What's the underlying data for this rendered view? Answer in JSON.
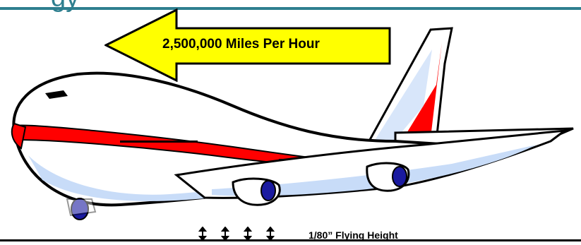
{
  "header": {
    "title_fragment": "gy",
    "accent_color": "#2e7f8f"
  },
  "speed_callout": {
    "label": "2,500,000 Miles Per Hour",
    "arrow_color": "#ffff00",
    "direction": "left"
  },
  "illustration": {
    "subject": "airplane-clipart",
    "body_color": "#ffffff",
    "stripe_color": "#ff0000",
    "engine_color": "#1a1aa0",
    "shadow_color": "#c8dcf8"
  },
  "flying_height": {
    "label": "1/80” Flying Height",
    "gap_marker_count": 4
  }
}
